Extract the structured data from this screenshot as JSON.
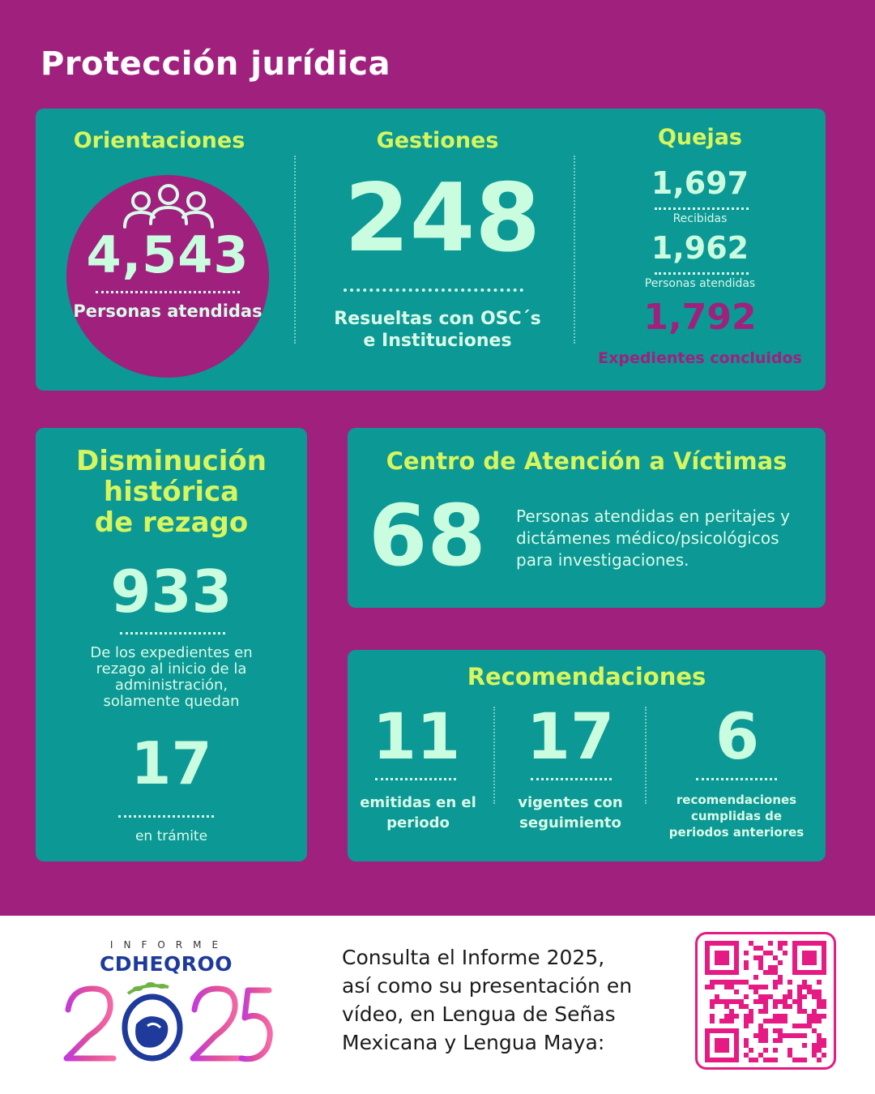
{
  "title": "Protección jurídica",
  "orientaciones": {
    "heading": "Orientaciones",
    "value": "4,543",
    "label": "Personas atendidas",
    "icon": "people-group-icon"
  },
  "gestiones": {
    "heading": "Gestiones",
    "value": "248",
    "label_line1": "Resueltas con OSC´s",
    "label_line2": "e Instituciones"
  },
  "quejas": {
    "heading": "Quejas",
    "received_value": "1,697",
    "received_label": "Recibidas",
    "attended_value": "1,962",
    "attended_label": "Personas atendidas",
    "closed_value": "1,792",
    "closed_label": "Expedientes concluidos"
  },
  "rezago": {
    "heading_line1": "Disminución",
    "heading_line2": "histórica",
    "heading_line3": "de rezago",
    "value1": "933",
    "desc_line1": "De los expedientes en",
    "desc_line2": "rezago al inicio de la",
    "desc_line3": "administración,",
    "desc_line4": "solamente quedan",
    "value2": "17",
    "value2_label": "en trámite"
  },
  "victimas": {
    "heading": "Centro de Atención a Víctimas",
    "value": "68",
    "desc_line1": "Personas atendidas en peritajes y",
    "desc_line2": "dictámenes médico/psicológicos",
    "desc_line3": "para investigaciones."
  },
  "recomendaciones": {
    "heading": "Recomendaciones",
    "items": [
      {
        "value": "11",
        "line1": "emitidas en el",
        "line2": "periodo",
        "line3": ""
      },
      {
        "value": "17",
        "line1": "vigentes con",
        "line2": "seguimiento",
        "line3": ""
      },
      {
        "value": "6",
        "line1": "recomendaciones",
        "line2": "cumplidas de",
        "line3": "periodos anteriores"
      }
    ]
  },
  "footer": {
    "logo_top": "INFORME",
    "logo_org": "CDHEQROO",
    "logo_year": "2025",
    "text_line1": "Consulta el Informe 2025,",
    "text_line2": "así como su presentación en",
    "text_line3": "vídeo,  en Lengua de Señas",
    "text_line4": "Mexicana y Lengua Maya:",
    "qr_icon": "qr-code-icon"
  },
  "colors": {
    "background": "#a0207e",
    "card": "#0c9894",
    "accent_lime": "#d6f55e",
    "number_mint": "#cafce0",
    "qr_pink": "#e61a83"
  }
}
